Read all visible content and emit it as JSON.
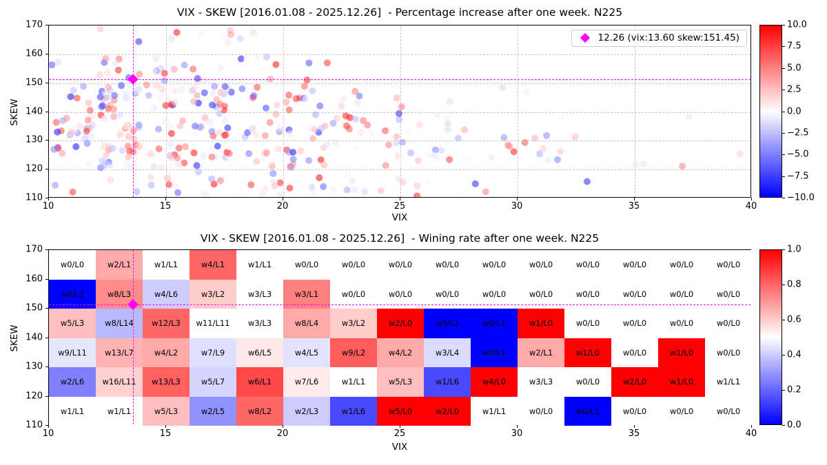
{
  "magenta": "#ff00ff",
  "chart_data": [
    {
      "type": "scatter",
      "title": "VIX - SKEW [2016.01.08 - 2025.12.26]  - Percentage increase after one week. N225",
      "xlabel": "VIX",
      "ylabel": "SKEW",
      "xlim": [
        10,
        40
      ],
      "ylim": [
        110,
        170
      ],
      "xticks": [
        10,
        15,
        20,
        25,
        30,
        35,
        40
      ],
      "yticks": [
        170,
        160,
        150,
        140,
        130,
        120,
        110
      ],
      "grid": true,
      "colorbar": {
        "vmin": -10,
        "vmax": 10,
        "tick_labels": [
          "10.0",
          "7.5",
          "5.0",
          "2.5",
          "0.0",
          "−2.5",
          "−5.0",
          "−7.5",
          "−10.0"
        ],
        "colormap": "blue-white-red"
      },
      "legend": {
        "position": "upper right",
        "entries": [
          {
            "label": "12.26 (vix:13.60 skew:151.45)",
            "marker": "diamond",
            "color": "#ff00ff"
          }
        ]
      },
      "highlight_marker": {
        "date_label": "12.26",
        "vix": 13.6,
        "skew": 151.45,
        "color": "#ff00ff"
      },
      "crosshair": {
        "vix": 13.6,
        "skew": 151.45,
        "color": "#ff00ff",
        "style": "dashed"
      },
      "point_value_meaning": "percentage increase after one week (red positive, blue negative)",
      "point_counts_source": "per-cell win/loss counts of the wining-rate heatmap below"
    },
    {
      "type": "heatmap",
      "title": "VIX - SKEW [2016.01.08 - 2025.12.26]  - Wining rate after one week. N225",
      "xlabel": "VIX",
      "ylabel": "SKEW",
      "xlim": [
        10,
        40
      ],
      "ylim": [
        110,
        170
      ],
      "xticks": [
        10,
        15,
        20,
        25,
        30,
        35,
        40
      ],
      "yticks": [
        170,
        160,
        150,
        140,
        130,
        120,
        110
      ],
      "colorbar": {
        "vmin": 0,
        "vmax": 1,
        "tick_labels": [
          "1.0",
          "0.8",
          "0.6",
          "0.4",
          "0.2",
          "0.0"
        ],
        "colormap": "blue-white-red"
      },
      "crosshair": {
        "vix": 13.6,
        "skew": 151.45,
        "color": "#ff00ff",
        "style": "dashed"
      },
      "cell_label_format": "w{w}/L{l}",
      "vix_bin_edges": [
        10,
        12,
        14,
        16,
        18,
        20,
        22,
        24,
        26,
        28,
        30,
        32,
        34,
        36,
        38,
        40
      ],
      "skew_bin_size": 10,
      "rows": [
        {
          "skew_range": "160-170",
          "wl": [
            [
              0,
              0
            ],
            [
              2,
              1
            ],
            [
              1,
              1
            ],
            [
              4,
              1
            ],
            [
              1,
              1
            ],
            [
              0,
              0
            ],
            [
              0,
              0
            ],
            [
              0,
              0
            ],
            [
              0,
              0
            ],
            [
              0,
              0
            ],
            [
              0,
              0
            ],
            [
              0,
              0
            ],
            [
              0,
              0
            ],
            [
              0,
              0
            ],
            [
              0,
              0
            ]
          ]
        },
        {
          "skew_range": "150-160",
          "wl": [
            [
              0,
              2
            ],
            [
              8,
              3
            ],
            [
              4,
              6
            ],
            [
              3,
              2
            ],
            [
              3,
              3
            ],
            [
              3,
              1
            ],
            [
              0,
              0
            ],
            [
              0,
              0
            ],
            [
              0,
              0
            ],
            [
              0,
              0
            ],
            [
              0,
              0
            ],
            [
              0,
              0
            ],
            [
              0,
              0
            ],
            [
              0,
              0
            ],
            [
              0,
              0
            ]
          ]
        },
        {
          "skew_range": "140-150",
          "wl": [
            [
              5,
              3
            ],
            [
              8,
              14
            ],
            [
              12,
              3
            ],
            [
              11,
              11
            ],
            [
              3,
              3
            ],
            [
              8,
              4
            ],
            [
              3,
              2
            ],
            [
              2,
              0
            ],
            [
              0,
              1
            ],
            [
              0,
              1
            ],
            [
              1,
              0
            ],
            [
              0,
              0
            ],
            [
              0,
              0
            ],
            [
              0,
              0
            ],
            [
              0,
              0
            ]
          ]
        },
        {
          "skew_range": "130-140",
          "wl": [
            [
              9,
              11
            ],
            [
              13,
              7
            ],
            [
              4,
              2
            ],
            [
              7,
              9
            ],
            [
              6,
              5
            ],
            [
              4,
              5
            ],
            [
              9,
              2
            ],
            [
              4,
              2
            ],
            [
              3,
              4
            ],
            [
              0,
              1
            ],
            [
              2,
              1
            ],
            [
              1,
              0
            ],
            [
              0,
              0
            ],
            [
              1,
              0
            ],
            [
              0,
              0
            ]
          ]
        },
        {
          "skew_range": "120-130",
          "wl": [
            [
              2,
              6
            ],
            [
              16,
              11
            ],
            [
              13,
              3
            ],
            [
              5,
              7
            ],
            [
              6,
              1
            ],
            [
              7,
              6
            ],
            [
              1,
              1
            ],
            [
              5,
              3
            ],
            [
              1,
              6
            ],
            [
              4,
              0
            ],
            [
              3,
              3
            ],
            [
              0,
              0
            ],
            [
              2,
              0
            ],
            [
              1,
              0
            ],
            [
              1,
              1
            ]
          ]
        },
        {
          "skew_range": "110-120",
          "wl": [
            [
              1,
              1
            ],
            [
              1,
              1
            ],
            [
              5,
              3
            ],
            [
              2,
              5
            ],
            [
              8,
              2
            ],
            [
              2,
              3
            ],
            [
              1,
              6
            ],
            [
              5,
              0
            ],
            [
              2,
              0
            ],
            [
              1,
              1
            ],
            [
              0,
              0
            ],
            [
              0,
              1
            ],
            [
              0,
              0
            ],
            [
              0,
              0
            ],
            [
              0,
              0
            ]
          ]
        }
      ]
    }
  ]
}
